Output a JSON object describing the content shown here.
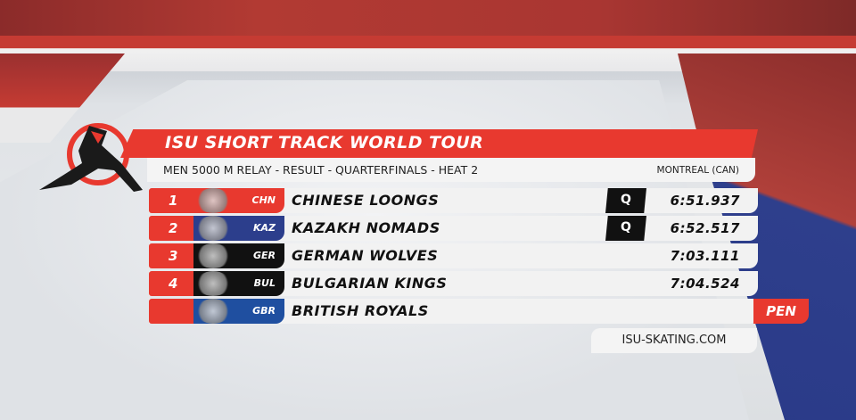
{
  "header": {
    "title": "ISU SHORT TRACK WORLD TOUR",
    "event": "MEN 5000 M RELAY - RESULT - QUARTERFINALS - HEAT 2",
    "location": "MONTREAL (CAN)"
  },
  "results": [
    {
      "rank": "1",
      "code": "CHN",
      "team": "CHINESE LOONGS",
      "qualifier": "Q",
      "time": "6:51.937",
      "code_color": "#e8392f"
    },
    {
      "rank": "2",
      "code": "KAZ",
      "team": "KAZAKH NOMADS",
      "qualifier": "Q",
      "time": "6:52.517",
      "code_color": "#2c3e8c"
    },
    {
      "rank": "3",
      "code": "GER",
      "team": "GERMAN WOLVES",
      "qualifier": "",
      "time": "7:03.111",
      "code_color": "#111111"
    },
    {
      "rank": "4",
      "code": "BUL",
      "team": "BULGARIAN KINGS",
      "qualifier": "",
      "time": "7:04.524",
      "code_color": "#111111"
    },
    {
      "rank": "",
      "code": "GBR",
      "team": "BRITISH ROYALS",
      "qualifier": "",
      "time": "",
      "status": "PEN",
      "code_color": "#1f4fa0"
    }
  ],
  "website": "ISU-SKATING.COM",
  "colors": {
    "accent": "#e8392f",
    "panel": "#f2f2f2",
    "qualifier_bg": "#111111"
  }
}
